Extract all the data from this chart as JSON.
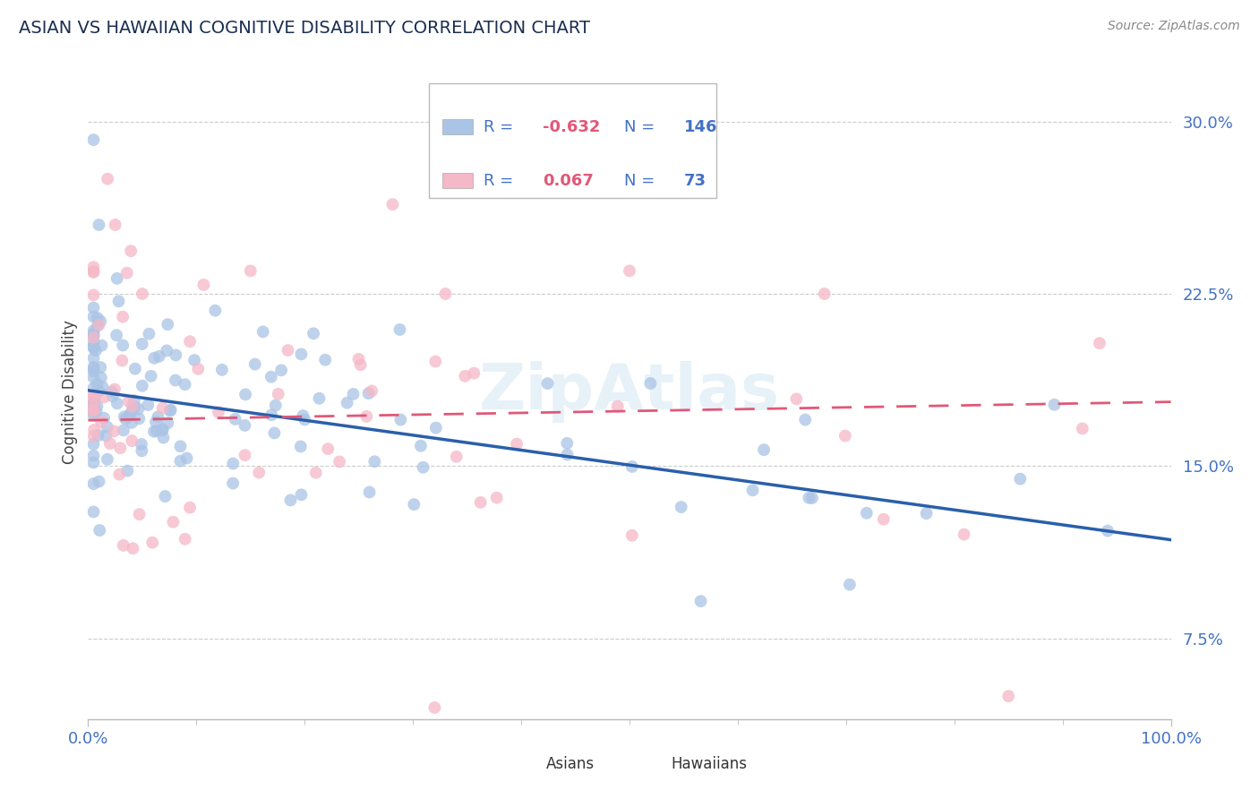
{
  "title": "ASIAN VS HAWAIIAN COGNITIVE DISABILITY CORRELATION CHART",
  "source_text": "Source: ZipAtlas.com",
  "ylabel": "Cognitive Disability",
  "xlim": [
    0,
    1
  ],
  "ylim": [
    0.04,
    0.325
  ],
  "xtick_labels": [
    "0.0%",
    "100.0%"
  ],
  "ytick_labels": [
    "7.5%",
    "15.0%",
    "22.5%",
    "30.0%"
  ],
  "ytick_vals": [
    0.075,
    0.15,
    0.225,
    0.3
  ],
  "asian_color": "#aac4e5",
  "hawaiian_color": "#f5b8c8",
  "asian_line_color": "#2a5faa",
  "hawaiian_line_color": "#e05878",
  "legend_asian_R": "-0.632",
  "legend_asian_N": "146",
  "legend_hawaiian_R": "0.067",
  "legend_hawaiian_N": "73",
  "title_color": "#1a2e50",
  "axis_label_color": "#4472c4",
  "text_color": "#4472c4",
  "background_color": "#ffffff",
  "grid_color": "#cccccc",
  "watermark": "ZipAtlas",
  "asian_line_x0": 0.0,
  "asian_line_y0": 0.183,
  "asian_line_x1": 1.0,
  "asian_line_y1": 0.118,
  "hawaiian_line_x0": 0.0,
  "hawaiian_line_y0": 0.17,
  "hawaiian_line_x1": 1.0,
  "hawaiian_line_y1": 0.178
}
